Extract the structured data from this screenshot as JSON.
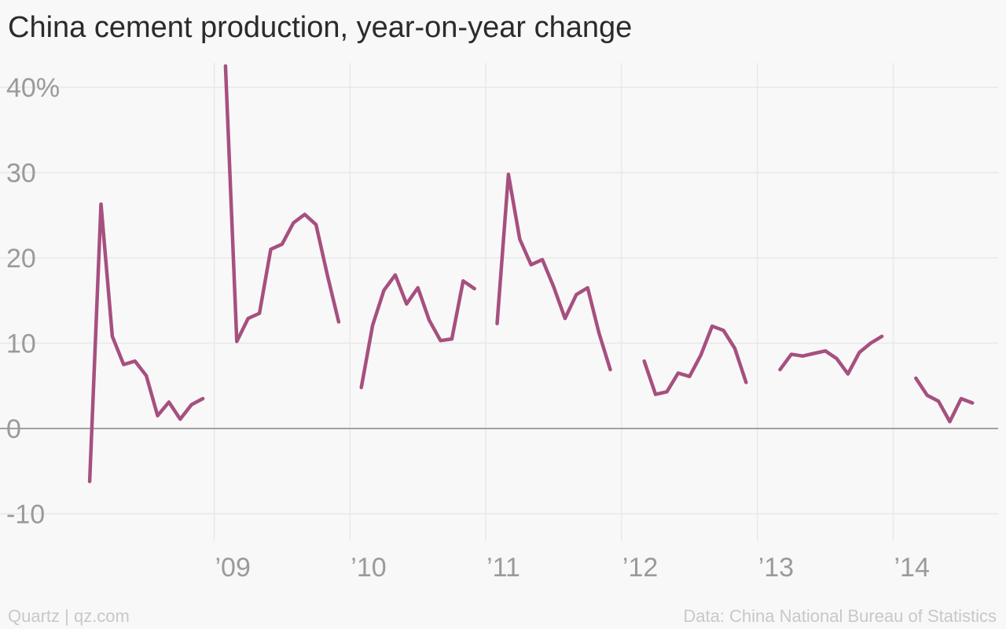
{
  "title": "China cement production, year-on-year change",
  "footer": {
    "source_left": "Quartz | qz.com",
    "source_right": "Data: China National Bureau of Statistics"
  },
  "colors": {
    "line": "#a6507f",
    "grid": "#e8e8e8",
    "zero": "#a0a0a0",
    "tick_text": "#9a9a9a"
  },
  "chart_data": {
    "type": "line",
    "title": "China cement production, year-on-year change",
    "xlabel": "",
    "ylabel": "",
    "ylim": [
      -13,
      43
    ],
    "xlim": [
      "2008-01",
      "2014-09"
    ],
    "grid": true,
    "y_ticks": [
      {
        "value": 40,
        "label": "40%"
      },
      {
        "value": 30,
        "label": "30"
      },
      {
        "value": 20,
        "label": "20"
      },
      {
        "value": 10,
        "label": "10"
      },
      {
        "value": 0,
        "label": "0"
      },
      {
        "value": -10,
        "label": "-10"
      }
    ],
    "x_ticks": [
      {
        "value": "2009-01",
        "label": "’09"
      },
      {
        "value": "2010-01",
        "label": "’10"
      },
      {
        "value": "2011-01",
        "label": "’11"
      },
      {
        "value": "2012-01",
        "label": "’12"
      },
      {
        "value": "2013-01",
        "label": "’13"
      },
      {
        "value": "2014-01",
        "label": "’14"
      }
    ],
    "series": [
      {
        "segments": [
          [
            [
              "2008-02",
              -6.2
            ],
            [
              "2008-03",
              26.3
            ],
            [
              "2008-04",
              10.8
            ],
            [
              "2008-05",
              7.5
            ],
            [
              "2008-06",
              7.9
            ],
            [
              "2008-07",
              6.2
            ],
            [
              "2008-08",
              1.5
            ],
            [
              "2008-09",
              3.1
            ],
            [
              "2008-10",
              1.1
            ],
            [
              "2008-11",
              2.8
            ],
            [
              "2008-12",
              3.5
            ]
          ],
          [
            [
              "2009-02",
              42.5
            ],
            [
              "2009-03",
              10.2
            ],
            [
              "2009-04",
              12.9
            ],
            [
              "2009-05",
              13.5
            ],
            [
              "2009-06",
              21.0
            ],
            [
              "2009-07",
              21.6
            ],
            [
              "2009-08",
              24.1
            ],
            [
              "2009-09",
              25.1
            ],
            [
              "2009-10",
              23.9
            ],
            [
              "2009-11",
              18.0
            ],
            [
              "2009-12",
              12.5
            ]
          ],
          [
            [
              "2010-02",
              4.8
            ],
            [
              "2010-03",
              12.1
            ],
            [
              "2010-04",
              16.2
            ],
            [
              "2010-05",
              18.0
            ],
            [
              "2010-06",
              14.6
            ],
            [
              "2010-07",
              16.5
            ],
            [
              "2010-08",
              12.7
            ],
            [
              "2010-09",
              10.3
            ],
            [
              "2010-10",
              10.5
            ],
            [
              "2010-11",
              17.3
            ],
            [
              "2010-12",
              16.4
            ]
          ],
          [
            [
              "2011-02",
              12.3
            ],
            [
              "2011-03",
              29.8
            ],
            [
              "2011-04",
              22.2
            ],
            [
              "2011-05",
              19.2
            ],
            [
              "2011-06",
              19.8
            ],
            [
              "2011-07",
              16.6
            ],
            [
              "2011-08",
              12.9
            ],
            [
              "2011-09",
              15.7
            ],
            [
              "2011-10",
              16.5
            ],
            [
              "2011-11",
              11.2
            ],
            [
              "2011-12",
              6.9
            ]
          ],
          [
            [
              "2012-03",
              7.9
            ],
            [
              "2012-04",
              4.0
            ],
            [
              "2012-05",
              4.3
            ],
            [
              "2012-06",
              6.5
            ],
            [
              "2012-07",
              6.1
            ],
            [
              "2012-08",
              8.6
            ],
            [
              "2012-09",
              12.0
            ],
            [
              "2012-10",
              11.5
            ],
            [
              "2012-11",
              9.4
            ],
            [
              "2012-12",
              5.4
            ]
          ],
          [
            [
              "2013-03",
              6.9
            ],
            [
              "2013-04",
              8.7
            ],
            [
              "2013-05",
              8.5
            ],
            [
              "2013-06",
              8.8
            ],
            [
              "2013-07",
              9.1
            ],
            [
              "2013-08",
              8.2
            ],
            [
              "2013-09",
              6.4
            ],
            [
              "2013-10",
              8.9
            ],
            [
              "2013-11",
              10.0
            ],
            [
              "2013-12",
              10.8
            ]
          ],
          [
            [
              "2014-03",
              5.9
            ],
            [
              "2014-04",
              3.9
            ],
            [
              "2014-05",
              3.2
            ],
            [
              "2014-06",
              0.8
            ],
            [
              "2014-07",
              3.5
            ],
            [
              "2014-08",
              3.0
            ]
          ]
        ]
      }
    ]
  }
}
